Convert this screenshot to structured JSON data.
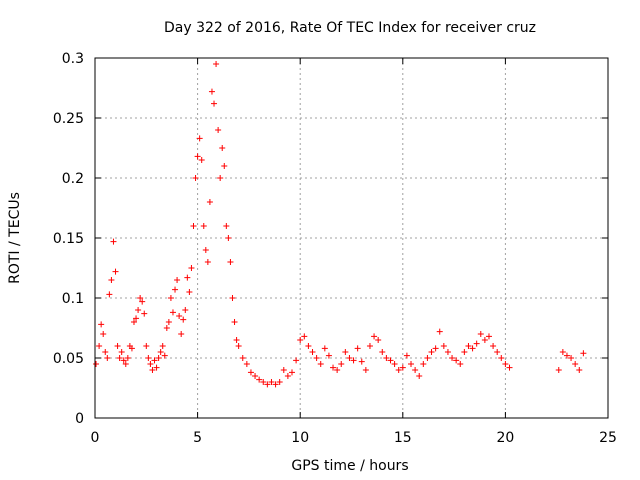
{
  "chart_data": {
    "type": "scatter",
    "title": "Day 322 of 2016, Rate Of TEC Index for receiver cruz",
    "xlabel": "GPS time / hours",
    "ylabel": "ROTI / TECUs",
    "xlim": [
      0,
      25
    ],
    "ylim": [
      0,
      0.3
    ],
    "xticks": [
      0,
      5,
      10,
      15,
      20,
      25
    ],
    "yticks": [
      0,
      0.05,
      0.1,
      0.15,
      0.2,
      0.25,
      0.3
    ],
    "xtick_labels": [
      "0",
      "5",
      "10",
      "15",
      "20",
      "25"
    ],
    "ytick_labels": [
      "0",
      "0.05",
      "0.1",
      "0.15",
      "0.2",
      "0.25",
      "0.3"
    ],
    "grid": true,
    "marker": "+",
    "color": "#ff0000",
    "data_gap": [
      20.3,
      22.5
    ],
    "series": [
      {
        "name": "ROTI",
        "x": [
          0.05,
          0.2,
          0.3,
          0.4,
          0.5,
          0.6,
          0.7,
          0.8,
          0.9,
          1.0,
          1.1,
          1.2,
          1.3,
          1.4,
          1.5,
          1.6,
          1.7,
          1.8,
          1.9,
          2.0,
          2.1,
          2.2,
          2.3,
          2.4,
          2.5,
          2.6,
          2.7,
          2.8,
          2.9,
          3.0,
          3.1,
          3.2,
          3.3,
          3.4,
          3.5,
          3.6,
          3.7,
          3.8,
          3.9,
          4.0,
          4.1,
          4.2,
          4.3,
          4.4,
          4.5,
          4.6,
          4.7,
          4.8,
          4.9,
          5.0,
          5.1,
          5.2,
          5.3,
          5.4,
          5.5,
          5.6,
          5.7,
          5.8,
          5.9,
          6.0,
          6.1,
          6.2,
          6.3,
          6.4,
          6.5,
          6.6,
          6.7,
          6.8,
          6.9,
          7.0,
          7.2,
          7.4,
          7.6,
          7.8,
          8.0,
          8.2,
          8.4,
          8.6,
          8.8,
          9.0,
          9.2,
          9.4,
          9.6,
          9.8,
          10.0,
          10.2,
          10.4,
          10.6,
          10.8,
          11.0,
          11.2,
          11.4,
          11.6,
          11.8,
          12.0,
          12.2,
          12.4,
          12.6,
          12.8,
          13.0,
          13.2,
          13.4,
          13.6,
          13.8,
          14.0,
          14.2,
          14.4,
          14.6,
          14.8,
          15.0,
          15.2,
          15.4,
          15.6,
          15.8,
          16.0,
          16.2,
          16.4,
          16.6,
          16.8,
          17.0,
          17.2,
          17.4,
          17.6,
          17.8,
          18.0,
          18.2,
          18.4,
          18.6,
          18.8,
          19.0,
          19.2,
          19.4,
          19.6,
          19.8,
          20.0,
          20.2,
          22.6,
          22.8,
          23.0,
          23.2,
          23.4,
          23.6,
          23.8
        ],
        "y": [
          0.045,
          0.06,
          0.078,
          0.07,
          0.055,
          0.05,
          0.103,
          0.115,
          0.147,
          0.122,
          0.06,
          0.05,
          0.055,
          0.048,
          0.045,
          0.05,
          0.06,
          0.058,
          0.08,
          0.083,
          0.09,
          0.1,
          0.097,
          0.087,
          0.06,
          0.05,
          0.045,
          0.04,
          0.048,
          0.042,
          0.05,
          0.055,
          0.06,
          0.052,
          0.075,
          0.08,
          0.1,
          0.088,
          0.107,
          0.115,
          0.085,
          0.07,
          0.082,
          0.09,
          0.117,
          0.105,
          0.125,
          0.16,
          0.2,
          0.218,
          0.233,
          0.215,
          0.16,
          0.14,
          0.13,
          0.18,
          0.272,
          0.262,
          0.295,
          0.24,
          0.2,
          0.225,
          0.21,
          0.16,
          0.15,
          0.13,
          0.1,
          0.08,
          0.065,
          0.06,
          0.05,
          0.045,
          0.038,
          0.035,
          0.032,
          0.03,
          0.028,
          0.03,
          0.028,
          0.03,
          0.04,
          0.035,
          0.038,
          0.048,
          0.065,
          0.068,
          0.06,
          0.055,
          0.05,
          0.045,
          0.058,
          0.052,
          0.042,
          0.04,
          0.045,
          0.055,
          0.05,
          0.048,
          0.058,
          0.047,
          0.04,
          0.06,
          0.068,
          0.065,
          0.055,
          0.05,
          0.048,
          0.045,
          0.04,
          0.042,
          0.052,
          0.045,
          0.04,
          0.035,
          0.045,
          0.05,
          0.055,
          0.058,
          0.072,
          0.06,
          0.055,
          0.05,
          0.048,
          0.045,
          0.055,
          0.06,
          0.058,
          0.062,
          0.07,
          0.065,
          0.068,
          0.06,
          0.055,
          0.05,
          0.045,
          0.042,
          0.04,
          0.055,
          0.052,
          0.05,
          0.045,
          0.04,
          0.054
        ]
      }
    ]
  }
}
